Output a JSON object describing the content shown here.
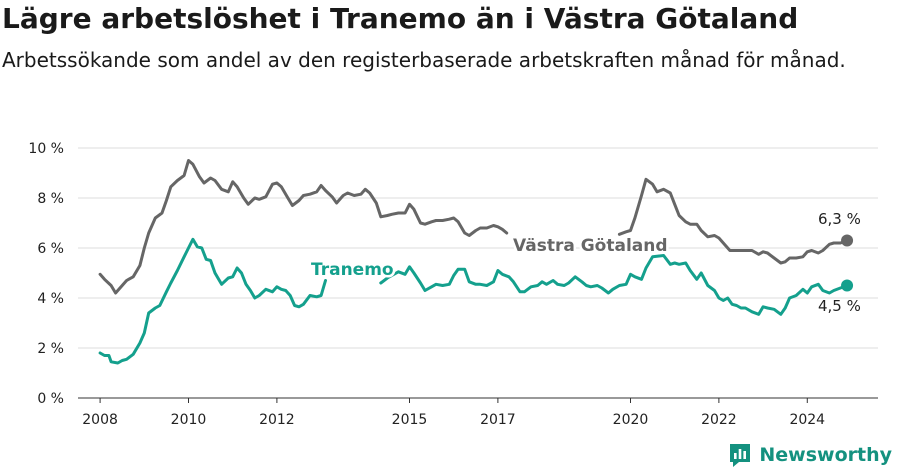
{
  "title": "Lägre arbetslöshet i Tranemo än i Västra Götaland",
  "subtitle": "Arbetssökande som andel av den registerbaserade arbetskraften månad för månad.",
  "brand": "Newsworthy",
  "chart_data": {
    "type": "line",
    "ylim": [
      0,
      10
    ],
    "xlim": [
      2007.5,
      2025.6
    ],
    "y_ticks": [
      {
        "value": 0,
        "label": "0 %"
      },
      {
        "value": 2,
        "label": "2 %"
      },
      {
        "value": 4,
        "label": "4 %"
      },
      {
        "value": 6,
        "label": "6 %"
      },
      {
        "value": 8,
        "label": "8 %"
      },
      {
        "value": 10,
        "label": "10 %"
      }
    ],
    "x_ticks": [
      {
        "value": 2008,
        "label": "2008"
      },
      {
        "value": 2010,
        "label": "2010"
      },
      {
        "value": 2012,
        "label": "2012"
      },
      {
        "value": 2015,
        "label": "2015"
      },
      {
        "value": 2017,
        "label": "2017"
      },
      {
        "value": 2020,
        "label": "2020"
      },
      {
        "value": 2022,
        "label": "2022"
      },
      {
        "value": 2024,
        "label": "2024"
      }
    ],
    "grid": true,
    "series": [
      {
        "name": "Västra Götaland",
        "color": "#666666",
        "end_label": "6,3 %",
        "points": [
          [
            2008.0,
            4.95
          ],
          [
            2008.1,
            4.75
          ],
          [
            2008.25,
            4.5
          ],
          [
            2008.35,
            4.2
          ],
          [
            2008.5,
            4.5
          ],
          [
            2008.6,
            4.7
          ],
          [
            2008.75,
            4.85
          ],
          [
            2008.9,
            5.3
          ],
          [
            2009.0,
            6.0
          ],
          [
            2009.1,
            6.6
          ],
          [
            2009.25,
            7.2
          ],
          [
            2009.4,
            7.4
          ],
          [
            2009.5,
            7.9
          ],
          [
            2009.6,
            8.45
          ],
          [
            2009.75,
            8.7
          ],
          [
            2009.9,
            8.9
          ],
          [
            2010.0,
            9.5
          ],
          [
            2010.1,
            9.35
          ],
          [
            2010.25,
            8.85
          ],
          [
            2010.35,
            8.6
          ],
          [
            2010.5,
            8.8
          ],
          [
            2010.6,
            8.7
          ],
          [
            2010.75,
            8.35
          ],
          [
            2010.9,
            8.25
          ],
          [
            2011.0,
            8.65
          ],
          [
            2011.1,
            8.45
          ],
          [
            2011.25,
            8.0
          ],
          [
            2011.35,
            7.75
          ],
          [
            2011.5,
            8.0
          ],
          [
            2011.6,
            7.95
          ],
          [
            2011.75,
            8.05
          ],
          [
            2011.9,
            8.55
          ],
          [
            2012.0,
            8.6
          ],
          [
            2012.1,
            8.45
          ],
          [
            2012.25,
            8.0
          ],
          [
            2012.35,
            7.7
          ],
          [
            2012.5,
            7.9
          ],
          [
            2012.6,
            8.1
          ],
          [
            2012.75,
            8.15
          ],
          [
            2012.9,
            8.25
          ],
          [
            2013.0,
            8.5
          ],
          [
            2013.1,
            8.3
          ],
          [
            2013.25,
            8.05
          ],
          [
            2013.35,
            7.8
          ],
          [
            2013.5,
            8.1
          ],
          [
            2013.6,
            8.2
          ],
          [
            2013.75,
            8.1
          ],
          [
            2013.9,
            8.15
          ],
          [
            2014.0,
            8.35
          ],
          [
            2014.1,
            8.2
          ],
          [
            2014.25,
            7.8
          ],
          [
            2014.35,
            7.25
          ],
          [
            2014.5,
            7.3
          ],
          [
            2014.6,
            7.35
          ],
          [
            2014.75,
            7.4
          ],
          [
            2014.9,
            7.4
          ],
          [
            2015.0,
            7.75
          ],
          [
            2015.1,
            7.55
          ],
          [
            2015.25,
            7.0
          ],
          [
            2015.35,
            6.95
          ],
          [
            2015.5,
            7.05
          ],
          [
            2015.6,
            7.1
          ],
          [
            2015.75,
            7.1
          ],
          [
            2015.9,
            7.15
          ],
          [
            2016.0,
            7.2
          ],
          [
            2016.1,
            7.05
          ],
          [
            2016.25,
            6.6
          ],
          [
            2016.35,
            6.5
          ],
          [
            2016.5,
            6.7
          ],
          [
            2016.6,
            6.8
          ],
          [
            2016.75,
            6.8
          ],
          [
            2016.9,
            6.9
          ],
          [
            2017.0,
            6.85
          ],
          [
            2017.1,
            6.75
          ],
          [
            2017.2,
            6.6
          ],
          [
            2019.75,
            6.55
          ],
          [
            2019.9,
            6.65
          ],
          [
            2020.0,
            6.7
          ],
          [
            2020.1,
            7.2
          ],
          [
            2020.25,
            8.1
          ],
          [
            2020.35,
            8.75
          ],
          [
            2020.5,
            8.55
          ],
          [
            2020.6,
            8.25
          ],
          [
            2020.75,
            8.35
          ],
          [
            2020.9,
            8.2
          ],
          [
            2021.0,
            7.75
          ],
          [
            2021.1,
            7.3
          ],
          [
            2021.25,
            7.05
          ],
          [
            2021.35,
            6.95
          ],
          [
            2021.5,
            6.95
          ],
          [
            2021.6,
            6.7
          ],
          [
            2021.75,
            6.45
          ],
          [
            2021.9,
            6.5
          ],
          [
            2022.0,
            6.4
          ],
          [
            2022.1,
            6.2
          ],
          [
            2022.25,
            5.9
          ],
          [
            2022.4,
            5.9
          ],
          [
            2022.6,
            5.9
          ],
          [
            2022.75,
            5.9
          ],
          [
            2022.9,
            5.75
          ],
          [
            2023.0,
            5.85
          ],
          [
            2023.1,
            5.8
          ],
          [
            2023.25,
            5.6
          ],
          [
            2023.4,
            5.4
          ],
          [
            2023.5,
            5.45
          ],
          [
            2023.6,
            5.6
          ],
          [
            2023.75,
            5.6
          ],
          [
            2023.9,
            5.65
          ],
          [
            2024.0,
            5.85
          ],
          [
            2024.1,
            5.9
          ],
          [
            2024.25,
            5.8
          ],
          [
            2024.35,
            5.9
          ],
          [
            2024.5,
            6.15
          ],
          [
            2024.6,
            6.2
          ],
          [
            2024.75,
            6.2
          ],
          [
            2024.9,
            6.3
          ]
        ]
      },
      {
        "name": "Tranemo",
        "color": "#14a08d",
        "end_label": "4,5 %",
        "points": [
          [
            2008.0,
            1.8
          ],
          [
            2008.1,
            1.7
          ],
          [
            2008.2,
            1.7
          ],
          [
            2008.25,
            1.45
          ],
          [
            2008.4,
            1.4
          ],
          [
            2008.5,
            1.5
          ],
          [
            2008.6,
            1.55
          ],
          [
            2008.75,
            1.75
          ],
          [
            2008.9,
            2.2
          ],
          [
            2009.0,
            2.6
          ],
          [
            2009.1,
            3.4
          ],
          [
            2009.25,
            3.6
          ],
          [
            2009.35,
            3.7
          ],
          [
            2009.5,
            4.25
          ],
          [
            2009.6,
            4.6
          ],
          [
            2009.75,
            5.1
          ],
          [
            2009.9,
            5.65
          ],
          [
            2010.0,
            6.0
          ],
          [
            2010.1,
            6.35
          ],
          [
            2010.2,
            6.05
          ],
          [
            2010.3,
            6.0
          ],
          [
            2010.4,
            5.55
          ],
          [
            2010.5,
            5.5
          ],
          [
            2010.6,
            5.0
          ],
          [
            2010.75,
            4.55
          ],
          [
            2010.9,
            4.8
          ],
          [
            2011.0,
            4.85
          ],
          [
            2011.1,
            5.2
          ],
          [
            2011.2,
            5.0
          ],
          [
            2011.3,
            4.55
          ],
          [
            2011.4,
            4.3
          ],
          [
            2011.5,
            4.0
          ],
          [
            2011.6,
            4.1
          ],
          [
            2011.75,
            4.35
          ],
          [
            2011.9,
            4.25
          ],
          [
            2012.0,
            4.45
          ],
          [
            2012.1,
            4.35
          ],
          [
            2012.2,
            4.3
          ],
          [
            2012.3,
            4.1
          ],
          [
            2012.4,
            3.7
          ],
          [
            2012.5,
            3.65
          ],
          [
            2012.6,
            3.75
          ],
          [
            2012.75,
            4.1
          ],
          [
            2012.9,
            4.05
          ],
          [
            2013.0,
            4.1
          ],
          [
            2013.1,
            4.7
          ],
          [
            2014.35,
            4.6
          ],
          [
            2014.5,
            4.8
          ],
          [
            2014.6,
            4.9
          ],
          [
            2014.75,
            5.05
          ],
          [
            2014.9,
            4.95
          ],
          [
            2015.0,
            5.25
          ],
          [
            2015.1,
            5.0
          ],
          [
            2015.25,
            4.6
          ],
          [
            2015.35,
            4.3
          ],
          [
            2015.5,
            4.45
          ],
          [
            2015.6,
            4.55
          ],
          [
            2015.75,
            4.5
          ],
          [
            2015.9,
            4.55
          ],
          [
            2016.0,
            4.9
          ],
          [
            2016.1,
            5.15
          ],
          [
            2016.25,
            5.15
          ],
          [
            2016.35,
            4.65
          ],
          [
            2016.5,
            4.55
          ],
          [
            2016.6,
            4.55
          ],
          [
            2016.75,
            4.5
          ],
          [
            2016.9,
            4.65
          ],
          [
            2017.0,
            5.1
          ],
          [
            2017.1,
            4.95
          ],
          [
            2017.25,
            4.85
          ],
          [
            2017.35,
            4.65
          ],
          [
            2017.5,
            4.25
          ],
          [
            2017.6,
            4.25
          ],
          [
            2017.75,
            4.45
          ],
          [
            2017.9,
            4.5
          ],
          [
            2018.0,
            4.65
          ],
          [
            2018.1,
            4.55
          ],
          [
            2018.25,
            4.7
          ],
          [
            2018.35,
            4.55
          ],
          [
            2018.5,
            4.5
          ],
          [
            2018.6,
            4.6
          ],
          [
            2018.75,
            4.85
          ],
          [
            2018.9,
            4.65
          ],
          [
            2019.0,
            4.5
          ],
          [
            2019.1,
            4.45
          ],
          [
            2019.25,
            4.5
          ],
          [
            2019.35,
            4.4
          ],
          [
            2019.5,
            4.2
          ],
          [
            2019.6,
            4.35
          ],
          [
            2019.75,
            4.5
          ],
          [
            2019.9,
            4.55
          ],
          [
            2020.0,
            4.95
          ],
          [
            2020.1,
            4.85
          ],
          [
            2020.25,
            4.75
          ],
          [
            2020.35,
            5.2
          ],
          [
            2020.5,
            5.65
          ],
          [
            2020.75,
            5.7
          ],
          [
            2020.9,
            5.35
          ],
          [
            2021.0,
            5.4
          ],
          [
            2021.1,
            5.35
          ],
          [
            2021.25,
            5.4
          ],
          [
            2021.35,
            5.1
          ],
          [
            2021.5,
            4.75
          ],
          [
            2021.6,
            5.0
          ],
          [
            2021.75,
            4.5
          ],
          [
            2021.9,
            4.3
          ],
          [
            2022.0,
            4.0
          ],
          [
            2022.1,
            3.9
          ],
          [
            2022.2,
            4.0
          ],
          [
            2022.3,
            3.75
          ],
          [
            2022.4,
            3.7
          ],
          [
            2022.5,
            3.6
          ],
          [
            2022.6,
            3.6
          ],
          [
            2022.75,
            3.45
          ],
          [
            2022.9,
            3.35
          ],
          [
            2023.0,
            3.65
          ],
          [
            2023.1,
            3.6
          ],
          [
            2023.25,
            3.55
          ],
          [
            2023.4,
            3.35
          ],
          [
            2023.5,
            3.6
          ],
          [
            2023.6,
            4.0
          ],
          [
            2023.75,
            4.1
          ],
          [
            2023.9,
            4.35
          ],
          [
            2024.0,
            4.2
          ],
          [
            2024.1,
            4.45
          ],
          [
            2024.25,
            4.55
          ],
          [
            2024.35,
            4.3
          ],
          [
            2024.5,
            4.2
          ],
          [
            2024.6,
            4.3
          ],
          [
            2024.75,
            4.4
          ],
          [
            2024.9,
            4.5
          ]
        ]
      }
    ]
  }
}
